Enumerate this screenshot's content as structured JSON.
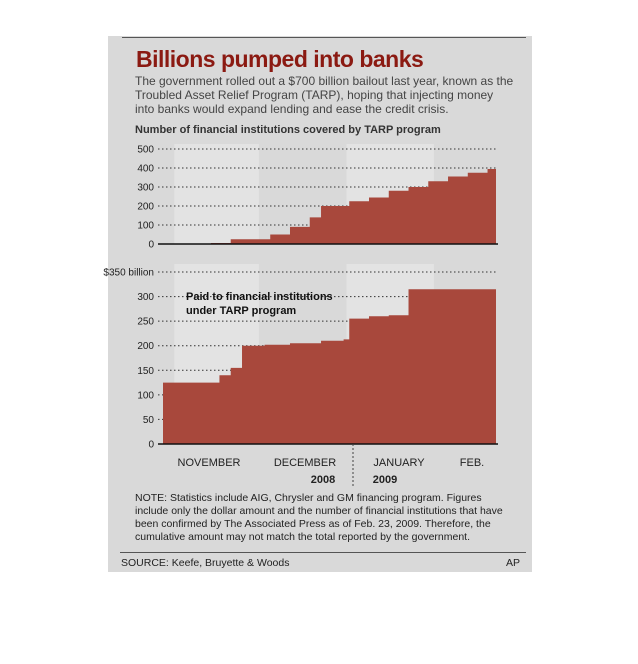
{
  "title": "Billions pumped into banks",
  "intro": "The government rolled out a $700 billion bailout last year, known as the Troubled Asset Relief Program (TARP), hoping that injecting money into banks would expand lending and ease the credit crisis.",
  "note": "NOTE: Statistics include AIG, Chrysler and GM financing program. Figures include only the dollar amount and the number of financial institutions that have been confirmed by The Associated Press as of Feb. 23, 2009. Therefore, the cumulative amount may not match the total reported by the government.",
  "source": "SOURCE: Keefe, Bruyette & Woods",
  "credit": "AP",
  "colors": {
    "fill": "#a8483c",
    "band": "#e3e3e3",
    "background": "#d9d9d9",
    "title": "#8b1a12"
  },
  "chart_data": [
    {
      "type": "area",
      "title": "Number of financial institutions covered by TARP program",
      "ylim": [
        0,
        500
      ],
      "yticks": [
        "0",
        "100",
        "200",
        "300",
        "400",
        "500"
      ],
      "x": [
        "2008-10-28",
        "2008-11-14",
        "2008-11-21",
        "2008-12-05",
        "2008-12-12",
        "2008-12-19",
        "2008-12-23",
        "2009-01-02",
        "2009-01-09",
        "2009-01-16",
        "2009-01-23",
        "2009-01-30",
        "2009-02-06",
        "2009-02-13",
        "2009-02-20",
        "2009-02-23"
      ],
      "values": [
        0,
        5,
        25,
        50,
        90,
        140,
        200,
        225,
        245,
        280,
        300,
        330,
        355,
        375,
        395,
        420
      ],
      "grid": true
    },
    {
      "type": "area",
      "title": "Paid to financial institutions under TARP program",
      "ylim": [
        0,
        350
      ],
      "yticks": [
        "0",
        "50",
        "100",
        "150",
        "200",
        "250",
        "300",
        "$350 billion"
      ],
      "x": [
        "2008-10-28",
        "2008-11-14",
        "2008-11-17",
        "2008-11-21",
        "2008-11-25",
        "2008-12-03",
        "2008-12-12",
        "2008-12-23",
        "2008-12-31",
        "2009-01-02",
        "2009-01-09",
        "2009-01-16",
        "2009-01-23",
        "2009-02-23"
      ],
      "values": [
        125,
        125,
        140,
        155,
        200,
        202,
        205,
        210,
        213,
        255,
        260,
        262,
        315,
        315
      ],
      "grid": true
    }
  ],
  "months": [
    "NOVEMBER",
    "DECEMBER",
    "JANUARY",
    "FEB."
  ],
  "years": [
    "2008",
    "2009"
  ]
}
